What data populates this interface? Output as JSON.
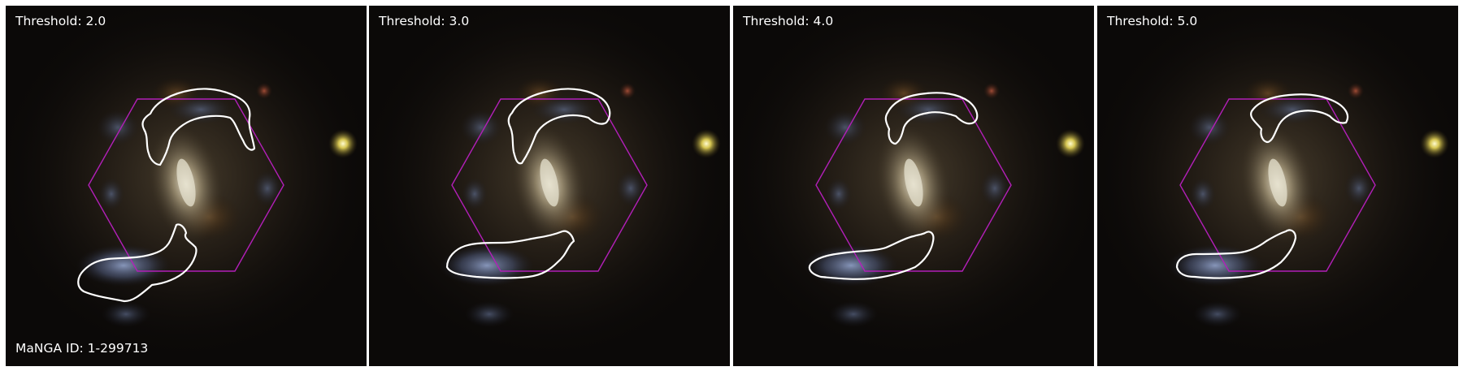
{
  "figure": {
    "panels": [
      {
        "threshold_label": "Threshold: 2.0"
      },
      {
        "threshold_label": "Threshold: 3.0"
      },
      {
        "threshold_label": "Threshold: 4.0"
      },
      {
        "threshold_label": "Threshold: 5.0"
      }
    ],
    "galaxy_id_label": "MaNGA ID: 1-299713",
    "colors": {
      "hexagon": "#b21fb8",
      "contour": "#ffffff",
      "background": "#0b0908"
    }
  }
}
